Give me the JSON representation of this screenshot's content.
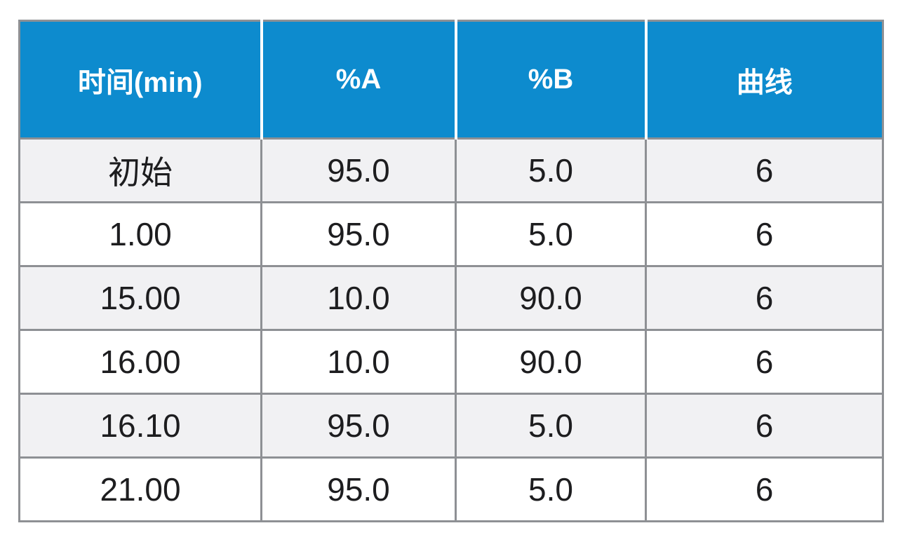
{
  "table": {
    "columns": [
      "时间(min)",
      "%A",
      "%B",
      "曲线"
    ],
    "rows": [
      [
        "初始",
        "95.0",
        "5.0",
        "6"
      ],
      [
        "1.00",
        "95.0",
        "5.0",
        "6"
      ],
      [
        "15.00",
        "10.0",
        "90.0",
        "6"
      ],
      [
        "16.00",
        "10.0",
        "90.0",
        "6"
      ],
      [
        "16.10",
        "95.0",
        "5.0",
        "6"
      ],
      [
        "21.00",
        "95.0",
        "5.0",
        "6"
      ]
    ]
  },
  "chart_data": {
    "type": "table",
    "columns": [
      "时间(min)",
      "%A",
      "%B",
      "曲线"
    ],
    "rows": [
      [
        "初始",
        "95.0",
        "5.0",
        "6"
      ],
      [
        "1.00",
        "95.0",
        "5.0",
        "6"
      ],
      [
        "15.00",
        "10.0",
        "90.0",
        "6"
      ],
      [
        "16.00",
        "10.0",
        "90.0",
        "6"
      ],
      [
        "16.10",
        "95.0",
        "5.0",
        "6"
      ],
      [
        "21.00",
        "95.0",
        "5.0",
        "6"
      ]
    ]
  },
  "colors": {
    "header_bg": "#0d8bce",
    "header_text": "#ffffff",
    "row_alt_bg": "#f1f1f3",
    "row_bg": "#ffffff",
    "border": "#8e9094",
    "body_text": "#1d1d1f"
  }
}
